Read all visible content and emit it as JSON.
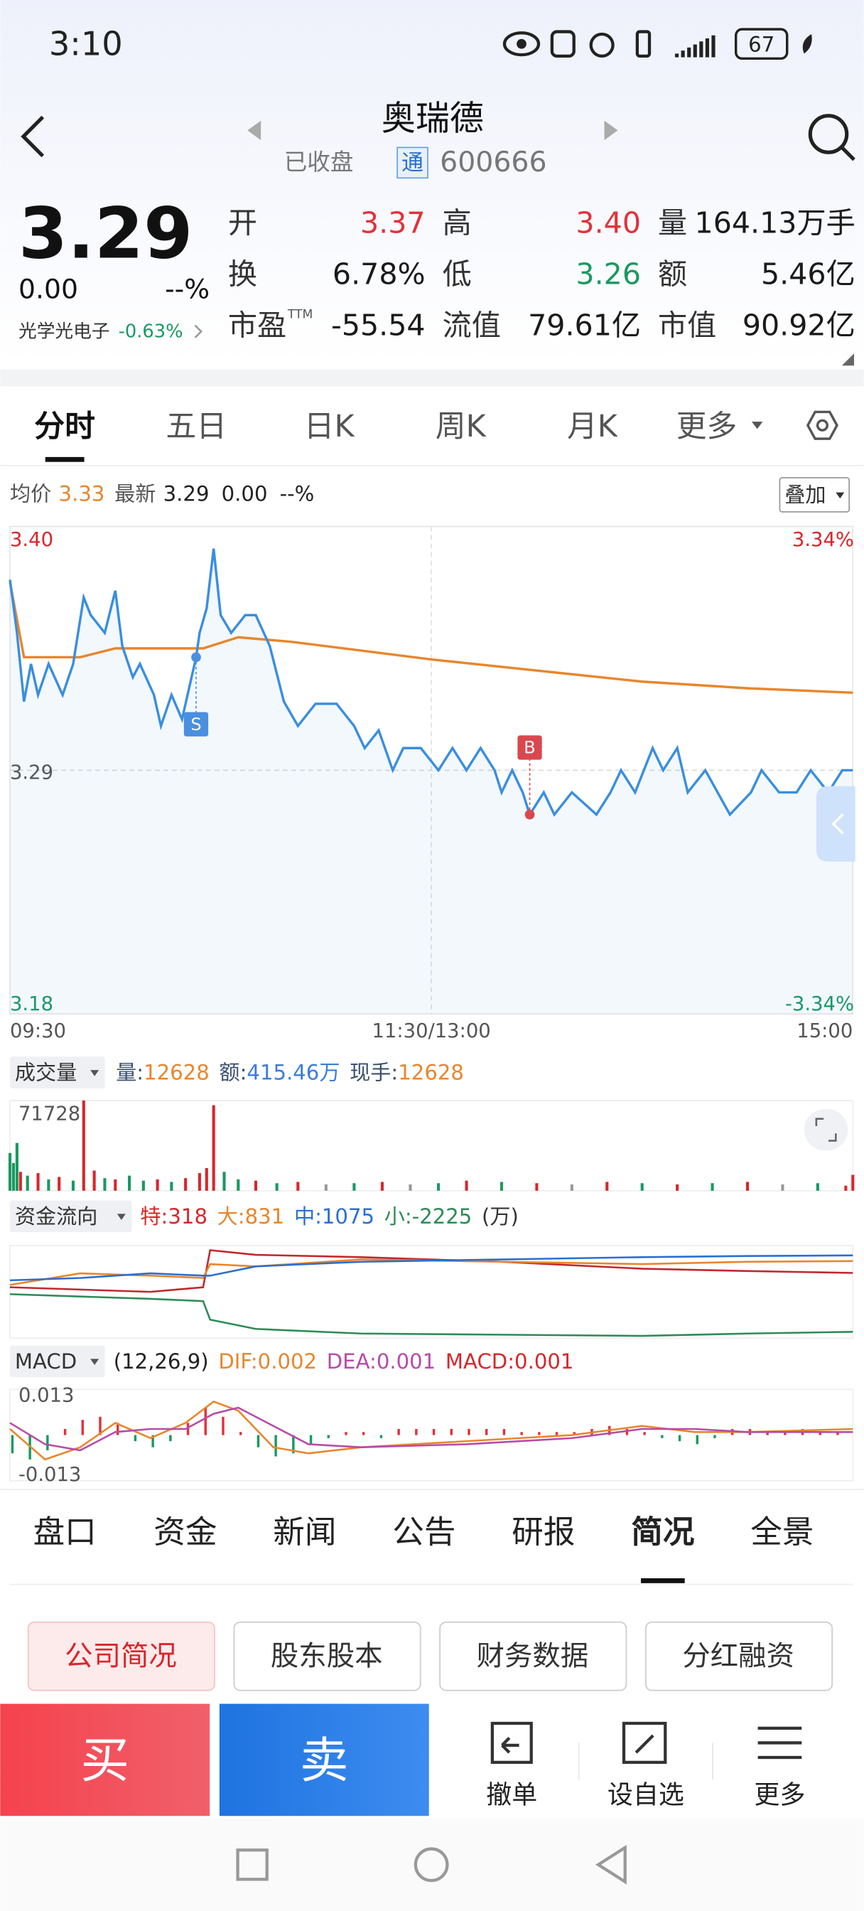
{
  "status_bar": {
    "time": "3:10",
    "battery": "67"
  },
  "header": {
    "title": "奥瑞德",
    "status": "已收盘",
    "badge": "通",
    "code": "600666"
  },
  "quote": {
    "price": "3.29",
    "change": "0.00",
    "change_pct": "--%",
    "sector": "光学光电子",
    "sector_change": "-0.63%",
    "fields": [
      [
        {
          "label": "开",
          "value": "3.37",
          "color": "#e2313a"
        },
        {
          "label": "高",
          "value": "3.40",
          "color": "#e2313a"
        },
        {
          "label": "量",
          "value": "164.13万手",
          "color": "#1a1a1a"
        }
      ],
      [
        {
          "label": "换",
          "value": "6.78%",
          "color": "#1a1a1a"
        },
        {
          "label": "低",
          "value": "3.26",
          "color": "#1a9960"
        },
        {
          "label": "额",
          "value": "5.46亿",
          "color": "#1a1a1a"
        }
      ],
      [
        {
          "label": "市盈",
          "sup": "TTM",
          "value": "-55.54",
          "color": "#1a1a1a"
        },
        {
          "label": "流值",
          "value": "79.61亿",
          "color": "#1a1a1a"
        },
        {
          "label": "市值",
          "value": "90.92亿",
          "color": "#1a1a1a"
        }
      ]
    ]
  },
  "tabs": {
    "items": [
      "分时",
      "五日",
      "日K",
      "周K",
      "月K",
      "更多"
    ],
    "active": 0
  },
  "intraday_header": {
    "avg_value": "3.33",
    "last_value": "3.29",
    "change": "0.00",
    "change_pct": "--%",
    "overlay": "叠加"
  },
  "volume_header": {
    "name": "成交量",
    "items": [
      {
        "label": "量:",
        "value": "12628",
        "color": "#e8862c"
      },
      {
        "label": "额:",
        "value": "415.46万",
        "color": "#3b7dd8"
      },
      {
        "label": "现手:",
        "value": "12628",
        "color": "#e8862c"
      }
    ]
  },
  "flow_header": {
    "name": "资金流向",
    "items": [
      {
        "label": "特:",
        "value": "318",
        "color": "#d9262b"
      },
      {
        "label": "大:",
        "value": "831",
        "color": "#e8862c"
      },
      {
        "label": "中:",
        "value": "1075",
        "color": "#2a6fd0"
      },
      {
        "label": "小:",
        "value": "-2225",
        "color": "#2e8b57"
      }
    ],
    "unit": "(万)"
  },
  "macd_header": {
    "name": "MACD",
    "params": "(12,26,9)",
    "items": [
      {
        "label": "DIF:",
        "value": "0.002",
        "color": "#e8862c"
      },
      {
        "label": "DEA:",
        "value": "0.001",
        "color": "#b84aa8"
      },
      {
        "label": "MACD:",
        "value": "0.001",
        "color": "#d9262b"
      }
    ]
  },
  "chart_data": [
    {
      "type": "line",
      "xlim": [
        0,
        240
      ],
      "xticks": [
        {
          "value": 0,
          "label": "09:30"
        },
        {
          "value": 120,
          "label": "11:30/13:00"
        },
        {
          "value": 240,
          "label": "15:00"
        }
      ],
      "ylim": [
        3.18,
        3.4
      ],
      "yticks": [
        {
          "value": 3.4,
          "label": "3.40"
        },
        3.29,
        3.18
      ],
      "y2lim": [
        -3.34,
        3.34
      ],
      "y2ticks": [
        {
          "value": 3.34,
          "label": "3.34%"
        },
        {
          "value": -3.34,
          "label": "-3.34%"
        }
      ],
      "series": [
        {
          "name": "均价",
          "color": "#e8862c",
          "x": [
            0,
            4,
            20,
            30,
            55,
            65,
            80,
            120,
            150,
            180,
            210,
            240
          ],
          "values": [
            3.375,
            3.341,
            3.341,
            3.345,
            3.345,
            3.35,
            3.348,
            3.34,
            3.335,
            3.33,
            3.327,
            3.325
          ]
        },
        {
          "name": "最新",
          "color": "#3a8ee0",
          "area": true,
          "x": [
            0,
            2,
            4,
            6,
            8,
            11,
            15,
            18,
            21,
            23,
            27,
            30,
            32,
            35,
            37,
            41,
            43,
            46,
            49,
            53,
            54,
            56,
            58,
            60,
            63,
            67,
            70,
            74,
            78,
            82,
            87,
            93,
            98,
            101,
            105,
            109,
            112,
            117,
            122,
            126,
            130,
            134,
            138,
            140,
            143,
            146,
            148,
            152,
            155,
            160,
            167,
            171,
            174,
            178,
            183,
            186,
            190,
            193,
            198,
            205,
            211,
            214,
            219,
            224,
            228,
            233,
            237,
            240
          ],
          "values": [
            3.376,
            3.352,
            3.321,
            3.338,
            3.324,
            3.338,
            3.324,
            3.338,
            3.368,
            3.36,
            3.352,
            3.371,
            3.346,
            3.332,
            3.338,
            3.324,
            3.31,
            3.324,
            3.313,
            3.341,
            3.352,
            3.363,
            3.39,
            3.36,
            3.352,
            3.36,
            3.36,
            3.346,
            3.321,
            3.31,
            3.32,
            3.32,
            3.31,
            3.3,
            3.308,
            3.29,
            3.3,
            3.3,
            3.29,
            3.3,
            3.29,
            3.3,
            3.29,
            3.28,
            3.29,
            3.28,
            3.27,
            3.28,
            3.27,
            3.28,
            3.27,
            3.28,
            3.29,
            3.28,
            3.3,
            3.29,
            3.3,
            3.28,
            3.29,
            3.27,
            3.28,
            3.29,
            3.28,
            3.28,
            3.29,
            3.28,
            3.29,
            3.29
          ]
        }
      ],
      "annotations": [
        {
          "label": "S",
          "x": 53,
          "y": 3.341,
          "color": "#4a8fe0"
        },
        {
          "label": "B",
          "x": 148,
          "y": 3.27,
          "color": "#d9484e"
        }
      ]
    },
    {
      "type": "bar",
      "xlim": [
        0,
        240
      ],
      "ylim": [
        0,
        71728
      ],
      "yticks": [
        71728
      ],
      "x": [
        0,
        1,
        2,
        3,
        5,
        8,
        11,
        14,
        18,
        21,
        24,
        27,
        30,
        34,
        38,
        42,
        46,
        50,
        54,
        56,
        58,
        61,
        65,
        70,
        76,
        82,
        90,
        98,
        106,
        114,
        122,
        130,
        140,
        150,
        160,
        170,
        180,
        190,
        200,
        210,
        220,
        230,
        238,
        240
      ],
      "values": [
        30000,
        22000,
        38000,
        15000,
        12000,
        14000,
        9000,
        11000,
        8000,
        71728,
        16000,
        10000,
        9000,
        12000,
        8000,
        9000,
        7000,
        10000,
        14000,
        18000,
        68000,
        15000,
        9000,
        8000,
        6000,
        7000,
        5000,
        6000,
        7000,
        5000,
        6000,
        8000,
        7000,
        6000,
        5000,
        7000,
        6000,
        5000,
        6000,
        7000,
        5000,
        6000,
        4000,
        12628
      ],
      "bar_colors": [
        "#1a9960",
        "#1a9960",
        "#1a9960",
        "#d9262b",
        "#1a9960",
        "#d9262b",
        "#1a9960",
        "#d9262b",
        "#1a9960",
        "#d9262b",
        "#d9262b",
        "#1a9960",
        "#d9262b",
        "#1a9960",
        "#1a9960",
        "#d9262b",
        "#1a9960",
        "#d9262b",
        "#d9262b",
        "#d9262b",
        "#d9262b",
        "#1a9960",
        "#1a9960",
        "#d9262b",
        "#1a9960",
        "#d9262b",
        "#999999",
        "#1a9960",
        "#d9262b",
        "#999999",
        "#1a9960",
        "#d9262b",
        "#1a9960",
        "#d9262b",
        "#999999",
        "#d9262b",
        "#1a9960",
        "#d9262b",
        "#1a9960",
        "#d9262b",
        "#999999",
        "#1a9960",
        "#d9262b",
        "#d9262b"
      ]
    },
    {
      "type": "line",
      "xlim": [
        0,
        240
      ],
      "ylim": [
        -2500,
        1500
      ],
      "series": [
        {
          "name": "特",
          "color": "#c0282d",
          "x": [
            0,
            20,
            40,
            55,
            57,
            70,
            100,
            140,
            180,
            210,
            240
          ],
          "values": [
            -300,
            -400,
            -500,
            -300,
            1300,
            1100,
            1000,
            800,
            500,
            400,
            318
          ]
        },
        {
          "name": "大",
          "color": "#e8862c",
          "x": [
            0,
            20,
            40,
            55,
            57,
            70,
            100,
            140,
            180,
            210,
            240
          ],
          "values": [
            -200,
            300,
            200,
            100,
            700,
            600,
            900,
            800,
            700,
            800,
            831
          ]
        },
        {
          "name": "中",
          "color": "#2a6fd0",
          "x": [
            0,
            20,
            40,
            55,
            57,
            70,
            100,
            140,
            180,
            210,
            240
          ],
          "values": [
            0,
            100,
            300,
            200,
            200,
            600,
            800,
            900,
            1000,
            1050,
            1075
          ]
        },
        {
          "name": "小",
          "color": "#2e8b57",
          "x": [
            0,
            20,
            40,
            55,
            57,
            70,
            100,
            140,
            180,
            210,
            240
          ],
          "values": [
            -600,
            -700,
            -800,
            -900,
            -1700,
            -2100,
            -2300,
            -2350,
            -2400,
            -2300,
            -2225
          ]
        }
      ]
    },
    {
      "type": "macd",
      "xlim": [
        0,
        240
      ],
      "ylim": [
        -0.015,
        0.015
      ],
      "yticks": [
        0.013,
        -0.013
      ],
      "up_color": "#e2313a",
      "down_color": "#1a9960",
      "x": [
        0,
        5,
        10,
        15,
        20,
        25,
        30,
        35,
        40,
        45,
        50,
        55,
        60,
        65,
        70,
        75,
        80,
        85,
        90,
        95,
        100,
        105,
        110,
        115,
        120,
        125,
        130,
        135,
        140,
        145,
        150,
        155,
        160,
        165,
        170,
        175,
        180,
        185,
        190,
        195,
        200,
        205,
        210,
        215,
        220,
        225,
        230,
        235
      ],
      "values": [
        -0.006,
        -0.008,
        -0.005,
        0.002,
        0.005,
        0.006,
        0.004,
        -0.002,
        -0.004,
        -0.002,
        0.004,
        0.009,
        0.006,
        0.001,
        -0.004,
        -0.007,
        -0.006,
        -0.003,
        -0.001,
        0.001,
        0.001,
        -0.001,
        0.002,
        0.002,
        0.002,
        0.002,
        0.002,
        0.002,
        0.002,
        0.001,
        0.001,
        0.001,
        0.001,
        0.002,
        0.003,
        0.002,
        0.001,
        -0.001,
        -0.002,
        -0.003,
        -0.001,
        0.002,
        0.002,
        0.001,
        0.001,
        0.002,
        0.001,
        0.001
      ],
      "series": [
        {
          "name": "DIF",
          "color": "#e8862c",
          "x": [
            0,
            10,
            20,
            30,
            40,
            50,
            58,
            65,
            75,
            85,
            100,
            130,
            160,
            180,
            195,
            210,
            240
          ],
          "values": [
            0.002,
            -0.008,
            -0.004,
            0.004,
            -0.001,
            0.004,
            0.011,
            0.008,
            -0.004,
            -0.006,
            -0.004,
            -0.002,
            0,
            0.003,
            0.001,
            0.001,
            0.002
          ]
        },
        {
          "name": "DEA",
          "color": "#b84aa8",
          "x": [
            0,
            10,
            20,
            30,
            40,
            50,
            58,
            65,
            75,
            85,
            100,
            130,
            160,
            180,
            195,
            210,
            240
          ],
          "values": [
            0.004,
            -0.003,
            -0.005,
            0.001,
            0.002,
            0.002,
            0.007,
            0.009,
            0.003,
            -0.003,
            -0.004,
            -0.003,
            -0.001,
            0.002,
            0.002,
            0.001,
            0.001
          ]
        }
      ]
    }
  ],
  "bottom_tabs": {
    "items": [
      "盘口",
      "资金",
      "新闻",
      "公告",
      "研报",
      "简况",
      "全景"
    ],
    "active": 5
  },
  "sub_tabs": {
    "items": [
      "公司简况",
      "股东股本",
      "财务数据",
      "分红融资"
    ],
    "active": 0
  },
  "actions": {
    "buy": "买",
    "sell": "卖",
    "tools": [
      "撤单",
      "设自选",
      "更多"
    ]
  }
}
